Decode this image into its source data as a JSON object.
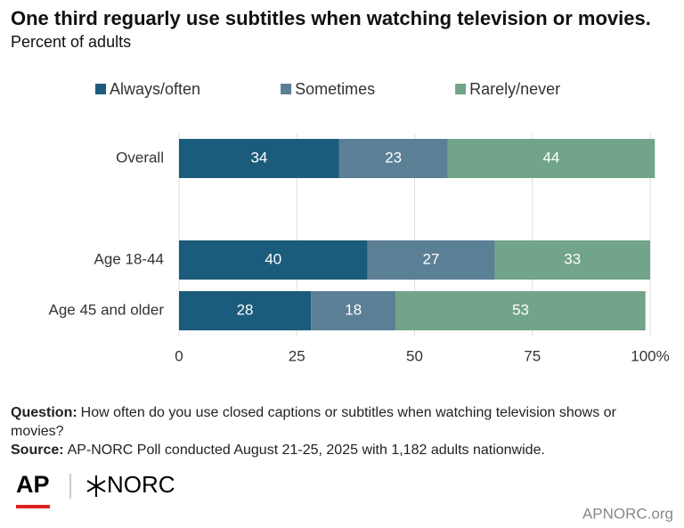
{
  "chart_data": {
    "type": "stacked-bar-horizontal",
    "title": "One third reguarly use subtitles when watching television or movies.",
    "subtitle": "Percent of adults",
    "categories": [
      "Overall",
      null,
      "Age 18-44",
      "Age 45 and older"
    ],
    "series": [
      {
        "name": "Always/often",
        "color": "#1b5b7b",
        "values": [
          34,
          null,
          40,
          28
        ]
      },
      {
        "name": "Sometimes",
        "color": "#5b7f95",
        "values": [
          23,
          null,
          27,
          18
        ]
      },
      {
        "name": "Rarely/never",
        "color": "#71a488",
        "values": [
          44,
          null,
          33,
          53
        ]
      }
    ],
    "xlim": [
      0,
      100
    ],
    "xticks": [
      0,
      25,
      50,
      75,
      {
        "value": 100,
        "label": "100%"
      }
    ],
    "grid": true,
    "legend": "top",
    "notes": [
      {
        "label": "Question:",
        "text": "How often do you use closed captions or subtitles when watching television shows or movies?"
      },
      {
        "label": "Source:",
        "text": "AP-NORC Poll conducted August 21-25, 2025 with 1,182 adults nationwide."
      }
    ],
    "logos": [
      "AP",
      "NORC"
    ],
    "credit": "APNORC.org"
  }
}
